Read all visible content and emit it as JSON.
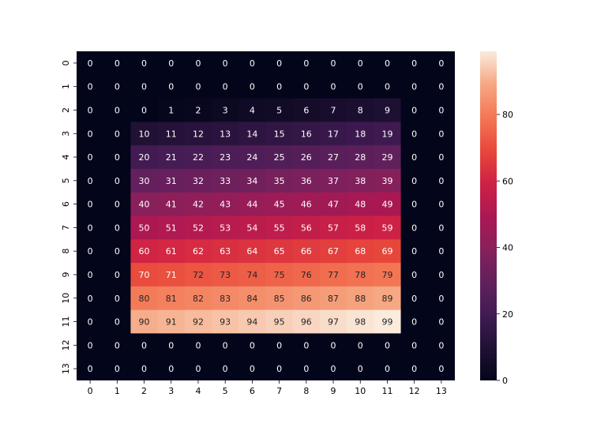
{
  "chart_data": {
    "type": "heatmap",
    "title": "",
    "xlabel": "",
    "ylabel": "",
    "x_categories": [
      "0",
      "1",
      "2",
      "3",
      "4",
      "5",
      "6",
      "7",
      "8",
      "9",
      "10",
      "11",
      "12",
      "13"
    ],
    "y_categories": [
      "0",
      "1",
      "2",
      "3",
      "4",
      "5",
      "6",
      "7",
      "8",
      "9",
      "10",
      "11",
      "12",
      "13"
    ],
    "values": [
      [
        0,
        0,
        0,
        0,
        0,
        0,
        0,
        0,
        0,
        0,
        0,
        0,
        0,
        0
      ],
      [
        0,
        0,
        0,
        0,
        0,
        0,
        0,
        0,
        0,
        0,
        0,
        0,
        0,
        0
      ],
      [
        0,
        0,
        0,
        1,
        2,
        3,
        4,
        5,
        6,
        7,
        8,
        9,
        0,
        0
      ],
      [
        0,
        0,
        10,
        11,
        12,
        13,
        14,
        15,
        16,
        17,
        18,
        19,
        0,
        0
      ],
      [
        0,
        0,
        20,
        21,
        22,
        23,
        24,
        25,
        26,
        27,
        28,
        29,
        0,
        0
      ],
      [
        0,
        0,
        30,
        31,
        32,
        33,
        34,
        35,
        36,
        37,
        38,
        39,
        0,
        0
      ],
      [
        0,
        0,
        40,
        41,
        42,
        43,
        44,
        45,
        46,
        47,
        48,
        49,
        0,
        0
      ],
      [
        0,
        0,
        50,
        51,
        52,
        53,
        54,
        55,
        56,
        57,
        58,
        59,
        0,
        0
      ],
      [
        0,
        0,
        60,
        61,
        62,
        63,
        64,
        65,
        66,
        67,
        68,
        69,
        0,
        0
      ],
      [
        0,
        0,
        70,
        71,
        72,
        73,
        74,
        75,
        76,
        77,
        78,
        79,
        0,
        0
      ],
      [
        0,
        0,
        80,
        81,
        82,
        83,
        84,
        85,
        86,
        87,
        88,
        89,
        0,
        0
      ],
      [
        0,
        0,
        90,
        91,
        92,
        93,
        94,
        95,
        96,
        97,
        98,
        99,
        0,
        0
      ],
      [
        0,
        0,
        0,
        0,
        0,
        0,
        0,
        0,
        0,
        0,
        0,
        0,
        0,
        0
      ],
      [
        0,
        0,
        0,
        0,
        0,
        0,
        0,
        0,
        0,
        0,
        0,
        0,
        0,
        0
      ]
    ],
    "colormap": "rocket",
    "vmin": 0,
    "vmax": 99,
    "colorbar_ticks": [
      0,
      20,
      40,
      60,
      80
    ],
    "annotations": true
  }
}
